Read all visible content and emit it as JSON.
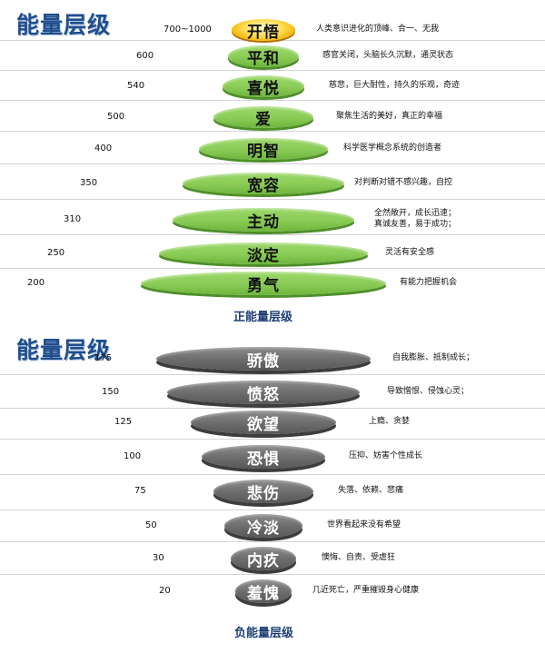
{
  "positive": {
    "title": "能量层级",
    "caption": "正能量层级",
    "levels": [
      {
        "value": "700~1000",
        "name": "开悟",
        "desc": [
          "人类意识进化的顶峰、合一、无我"
        ]
      },
      {
        "value": "600",
        "name": "平和",
        "desc": [
          "感官关闭，头脑长久沉默，通灵状态"
        ]
      },
      {
        "value": "540",
        "name": "喜悦",
        "desc": [
          "慈悲，巨大耐性，持久的乐观，奇迹"
        ]
      },
      {
        "value": "500",
        "name": "爱",
        "desc": [
          "聚焦生活的美好，真正的幸福"
        ]
      },
      {
        "value": "400",
        "name": "明智",
        "desc": [
          "科学医学概念系统的创造者"
        ]
      },
      {
        "value": "350",
        "name": "宽容",
        "desc": [
          "对判断对错不感兴趣，自控"
        ]
      },
      {
        "value": "310",
        "name": "主动",
        "desc": [
          "全然敞开，成长迅速；",
          "真诚友善，易于成功；"
        ]
      },
      {
        "value": "250",
        "name": "淡定",
        "desc": [
          "灵活有安全感"
        ]
      },
      {
        "value": "200",
        "name": "勇气",
        "desc": [
          "有能力把握机会"
        ]
      }
    ]
  },
  "negative": {
    "title": "能量层级",
    "caption": "负能量层级",
    "levels": [
      {
        "value": "175",
        "name": "骄傲",
        "desc": [
          "自我膨胀、抵制成长；"
        ]
      },
      {
        "value": "150",
        "name": "愤怒",
        "desc": [
          "导致憎恨、侵蚀心灵；"
        ]
      },
      {
        "value": "125",
        "name": "欲望",
        "desc": [
          "上瘾、贪婪"
        ]
      },
      {
        "value": "100",
        "name": "恐惧",
        "desc": [
          "压抑、妨害个性成长"
        ]
      },
      {
        "value": "75",
        "name": "悲伤",
        "desc": [
          "失落、依赖、悲痛"
        ]
      },
      {
        "value": "50",
        "name": "冷淡",
        "desc": [
          "世界看起来没有希望"
        ]
      },
      {
        "value": "30",
        "name": "内疚",
        "desc": [
          "懊悔、自责、受虐狂"
        ]
      },
      {
        "value": "20",
        "name": "羞愧",
        "desc": [
          "几近死亡，严重摧毁身心健康"
        ]
      }
    ]
  },
  "colors": {
    "positive_disk": "#8acb56",
    "top_disk": "#f4b600",
    "negative_disk": "#6e6e6e",
    "title": "#1f4e8c"
  }
}
